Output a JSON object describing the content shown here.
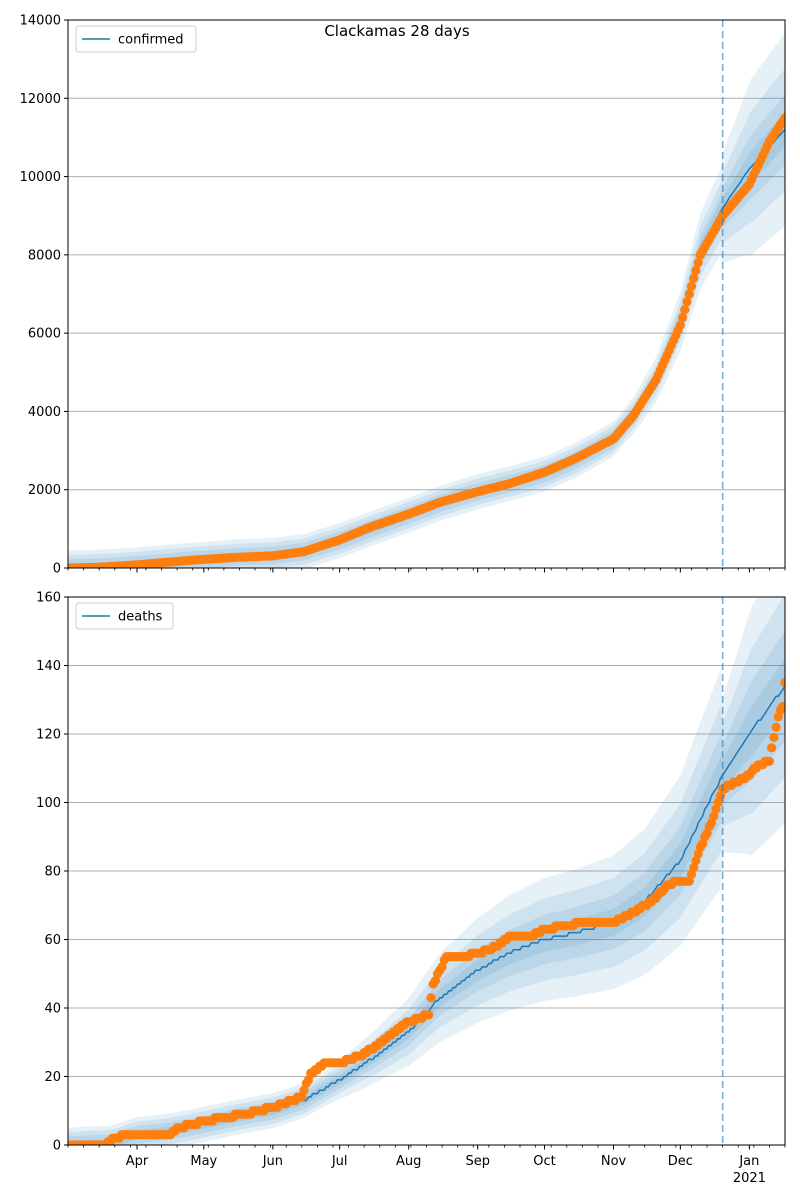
{
  "title": "Clackamas 28 days",
  "colors": {
    "model_line": "#1f77b4",
    "observed": "#ff7f0e",
    "band": "#1f77b4",
    "forecast_divider": "#1f77b4",
    "grid": "#b0b0b0"
  },
  "x_axis": {
    "ticks": [
      {
        "date": "2020-04-01",
        "label": "Apr"
      },
      {
        "date": "2020-05-01",
        "label": "May"
      },
      {
        "date": "2020-06-01",
        "label": "Jun"
      },
      {
        "date": "2020-07-01",
        "label": "Jul"
      },
      {
        "date": "2020-08-01",
        "label": "Aug"
      },
      {
        "date": "2020-09-01",
        "label": "Sep"
      },
      {
        "date": "2020-10-01",
        "label": "Oct"
      },
      {
        "date": "2020-11-01",
        "label": "Nov"
      },
      {
        "date": "2020-12-01",
        "label": "Dec"
      },
      {
        "date": "2021-01-01",
        "label": "Jan"
      }
    ],
    "year_label": "2021"
  },
  "chart_data": [
    {
      "type": "line",
      "legend": "confirmed",
      "legend_position": "upper-left",
      "xlim": [
        "2020-03-01",
        "2021-01-17"
      ],
      "ylim": [
        0,
        14000
      ],
      "yticks": [
        0,
        2000,
        4000,
        6000,
        8000,
        10000,
        12000,
        14000
      ],
      "grid": "horizontal",
      "forecast_start": "2020-12-20",
      "model": {
        "name": "confirmed",
        "x": [
          "2020-03-01",
          "2020-03-15",
          "2020-04-01",
          "2020-04-15",
          "2020-05-01",
          "2020-05-15",
          "2020-06-01",
          "2020-06-15",
          "2020-07-01",
          "2020-07-15",
          "2020-08-01",
          "2020-08-15",
          "2020-09-01",
          "2020-09-15",
          "2020-10-01",
          "2020-10-15",
          "2020-11-01",
          "2020-11-10",
          "2020-11-20",
          "2020-12-01",
          "2020-12-10",
          "2020-12-20",
          "2021-01-01",
          "2021-01-17"
        ],
        "y": [
          0,
          20,
          80,
          150,
          220,
          280,
          320,
          420,
          700,
          1000,
          1350,
          1650,
          1950,
          2150,
          2400,
          2750,
          3300,
          3900,
          4800,
          6300,
          8100,
          9200,
          10200,
          11200
        ]
      },
      "band_spread": [
        0.03,
        0.05,
        0.08,
        0.12
      ],
      "band_forecast_spread": [
        0.04,
        0.08,
        0.14,
        0.22
      ],
      "observed": {
        "x": [
          "2020-03-01",
          "2020-03-15",
          "2020-04-01",
          "2020-04-15",
          "2020-05-01",
          "2020-05-15",
          "2020-06-01",
          "2020-06-15",
          "2020-07-01",
          "2020-07-15",
          "2020-08-01",
          "2020-08-15",
          "2020-09-01",
          "2020-09-15",
          "2020-10-01",
          "2020-10-15",
          "2020-11-01",
          "2020-11-10",
          "2020-11-20",
          "2020-12-01",
          "2020-12-10",
          "2020-12-20",
          "2021-01-01",
          "2021-01-10",
          "2021-01-17"
        ],
        "y": [
          0,
          20,
          80,
          150,
          220,
          270,
          310,
          420,
          720,
          1050,
          1380,
          1680,
          1950,
          2150,
          2450,
          2800,
          3300,
          3900,
          4800,
          6200,
          8000,
          9000,
          9800,
          10900,
          11500
        ]
      }
    },
    {
      "type": "line",
      "legend": "deaths",
      "legend_position": "upper-left",
      "xlim": [
        "2020-03-01",
        "2021-01-17"
      ],
      "ylim": [
        0,
        160
      ],
      "yticks": [
        0,
        20,
        40,
        60,
        80,
        100,
        120,
        140,
        160
      ],
      "grid": "horizontal",
      "forecast_start": "2020-12-20",
      "model": {
        "name": "deaths",
        "x": [
          "2020-03-01",
          "2020-03-20",
          "2020-04-01",
          "2020-04-15",
          "2020-05-01",
          "2020-05-15",
          "2020-06-01",
          "2020-06-15",
          "2020-07-01",
          "2020-07-15",
          "2020-08-01",
          "2020-08-15",
          "2020-09-01",
          "2020-09-15",
          "2020-10-01",
          "2020-10-15",
          "2020-11-01",
          "2020-11-15",
          "2020-12-01",
          "2020-12-10",
          "2020-12-20",
          "2021-01-01",
          "2021-01-17"
        ],
        "y": [
          0,
          0.5,
          3,
          4,
          6,
          8,
          10,
          13,
          19,
          25,
          33,
          43,
          51,
          56,
          60,
          62,
          65,
          71,
          83,
          95,
          108,
          120,
          134
        ]
      },
      "band_spread": [
        0.06,
        0.12,
        0.2,
        0.3
      ],
      "band_forecast_spread": [
        0.06,
        0.12,
        0.2,
        0.3
      ],
      "observed": {
        "x": [
          "2020-03-01",
          "2020-03-18",
          "2020-03-22",
          "2020-03-28",
          "2020-04-15",
          "2020-04-20",
          "2020-05-01",
          "2020-05-10",
          "2020-05-20",
          "2020-06-01",
          "2020-06-10",
          "2020-06-14",
          "2020-06-18",
          "2020-06-25",
          "2020-07-01",
          "2020-07-10",
          "2020-07-20",
          "2020-08-01",
          "2020-08-10",
          "2020-08-12",
          "2020-08-18",
          "2020-08-25",
          "2020-09-01",
          "2020-09-10",
          "2020-09-15",
          "2020-09-25",
          "2020-10-01",
          "2020-10-10",
          "2020-10-20",
          "2020-11-01",
          "2020-11-10",
          "2020-11-20",
          "2020-11-25",
          "2020-12-01",
          "2020-12-05",
          "2020-12-10",
          "2020-12-15",
          "2020-12-20",
          "2021-01-01",
          "2021-01-05",
          "2021-01-10",
          "2021-01-12",
          "2021-01-14",
          "2021-01-16",
          "2021-01-17"
        ],
        "y": [
          0,
          0,
          2,
          3,
          3,
          5,
          7,
          8,
          9,
          11,
          13,
          14,
          21,
          24,
          24,
          26,
          30,
          36,
          38,
          47,
          55,
          55,
          56,
          58,
          61,
          61,
          63,
          64,
          65,
          65,
          68,
          72,
          76,
          77,
          77,
          87,
          94,
          104,
          108,
          111,
          112,
          119,
          125,
          128,
          135
        ]
      }
    }
  ]
}
